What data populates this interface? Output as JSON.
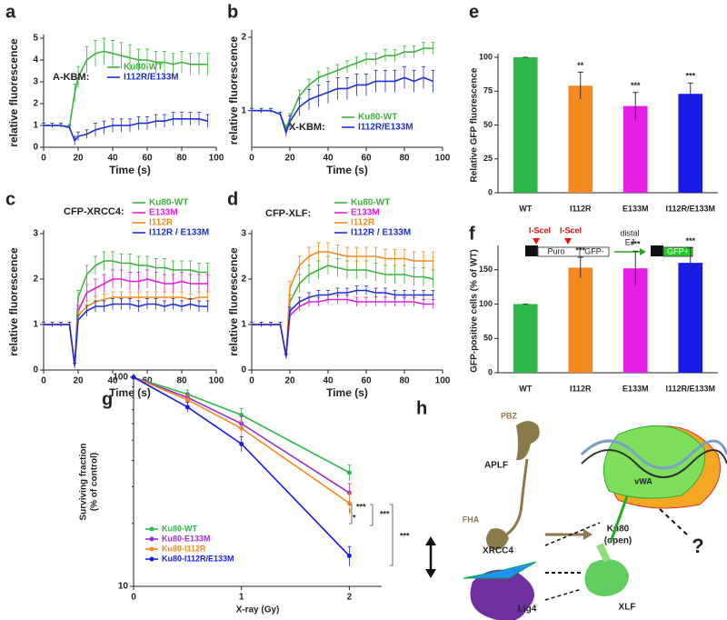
{
  "chart_data": [
    {
      "panel": "a",
      "type": "line",
      "xlabel": "Time (s)",
      "ylabel": "relative fluorescence",
      "annotation": "A-KBM:",
      "xlim": [
        0,
        100
      ],
      "xticks": [
        0,
        20,
        40,
        60,
        80,
        100
      ],
      "ylim": [
        0,
        5
      ],
      "yticks": [
        0,
        1,
        2,
        3,
        4,
        5
      ],
      "x": [
        0,
        5,
        10,
        15,
        18,
        20,
        25,
        30,
        35,
        40,
        45,
        50,
        55,
        60,
        65,
        70,
        75,
        80,
        85,
        90,
        95
      ],
      "series": [
        {
          "name": "Ku80-WT",
          "color": "#3cb43c",
          "values": [
            1,
            1,
            1,
            0.95,
            2.5,
            3.2,
            4.0,
            4.3,
            4.4,
            4.3,
            4.2,
            4.1,
            4.0,
            4.0,
            3.9,
            3.9,
            3.8,
            3.9,
            3.8,
            3.8,
            3.8
          ],
          "errors": [
            0.1,
            0.1,
            0.1,
            0.1,
            0.4,
            0.5,
            0.6,
            0.6,
            0.6,
            0.6,
            0.6,
            0.6,
            0.5,
            0.5,
            0.5,
            0.5,
            0.5,
            0.5,
            0.5,
            0.5,
            0.5
          ]
        },
        {
          "name": "I112R/E133M",
          "color": "#1f2fd0",
          "values": [
            1,
            1,
            1,
            0.9,
            0.3,
            0.5,
            0.6,
            0.8,
            0.9,
            1.0,
            1.0,
            1.0,
            1.1,
            1.1,
            1.2,
            1.2,
            1.3,
            1.3,
            1.3,
            1.3,
            1.2
          ],
          "errors": [
            0.1,
            0.1,
            0.1,
            0.1,
            0.2,
            0.2,
            0.2,
            0.3,
            0.3,
            0.3,
            0.3,
            0.3,
            0.3,
            0.3,
            0.3,
            0.3,
            0.3,
            0.3,
            0.3,
            0.3,
            0.3
          ]
        }
      ]
    },
    {
      "panel": "b",
      "type": "line",
      "xlabel": "Time (s)",
      "ylabel": "relative fluorescence",
      "annotation": "X-KBM:",
      "xlim": [
        0,
        100
      ],
      "xticks": [
        0,
        20,
        40,
        60,
        80,
        100
      ],
      "ylim": [
        0.5,
        2.05
      ],
      "yticks": [
        1,
        2
      ],
      "x": [
        0,
        5,
        10,
        15,
        18,
        20,
        25,
        30,
        35,
        40,
        45,
        50,
        55,
        60,
        65,
        70,
        75,
        80,
        85,
        90,
        95
      ],
      "series": [
        {
          "name": "Ku80-WT",
          "color": "#3cb43c",
          "values": [
            1,
            1,
            1,
            0.95,
            0.75,
            0.9,
            1.2,
            1.35,
            1.45,
            1.5,
            1.55,
            1.6,
            1.65,
            1.7,
            1.7,
            1.75,
            1.75,
            1.8,
            1.8,
            1.85,
            1.85
          ],
          "errors": [
            0.03,
            0.03,
            0.03,
            0.03,
            0.05,
            0.06,
            0.08,
            0.08,
            0.08,
            0.08,
            0.08,
            0.08,
            0.08,
            0.08,
            0.08,
            0.08,
            0.08,
            0.08,
            0.08,
            0.08,
            0.08
          ]
        },
        {
          "name": "I112R/E133M",
          "color": "#1f2fd0",
          "values": [
            1,
            1,
            1,
            0.95,
            0.7,
            0.85,
            1.05,
            1.15,
            1.2,
            1.25,
            1.3,
            1.3,
            1.35,
            1.35,
            1.4,
            1.4,
            1.4,
            1.45,
            1.4,
            1.45,
            1.4
          ],
          "errors": [
            0.03,
            0.03,
            0.03,
            0.03,
            0.05,
            0.08,
            0.12,
            0.14,
            0.15,
            0.15,
            0.15,
            0.15,
            0.15,
            0.15,
            0.15,
            0.15,
            0.15,
            0.15,
            0.15,
            0.15,
            0.15
          ]
        }
      ]
    },
    {
      "panel": "c",
      "type": "line",
      "xlabel": "Time (s)",
      "ylabel": "relative fluorescence",
      "annotation": "CFP-XRCC4:",
      "xlim": [
        0,
        100
      ],
      "xticks": [
        0,
        20,
        40,
        60,
        80,
        100
      ],
      "ylim": [
        0,
        3
      ],
      "yticks": [
        0,
        1,
        2,
        3
      ],
      "x": [
        0,
        5,
        10,
        15,
        18,
        20,
        25,
        30,
        35,
        40,
        45,
        50,
        55,
        60,
        65,
        70,
        75,
        80,
        85,
        90,
        95
      ],
      "series": [
        {
          "name": "Ku80-WT",
          "color": "#3cb43c",
          "values": [
            1,
            1,
            1,
            1,
            0.1,
            1.6,
            2.1,
            2.3,
            2.4,
            2.4,
            2.35,
            2.35,
            2.3,
            2.3,
            2.25,
            2.25,
            2.2,
            2.2,
            2.2,
            2.15,
            2.15
          ],
          "errors": [
            0.05,
            0.05,
            0.05,
            0.05,
            0.05,
            0.15,
            0.2,
            0.2,
            0.2,
            0.2,
            0.2,
            0.2,
            0.2,
            0.2,
            0.2,
            0.2,
            0.2,
            0.2,
            0.2,
            0.2,
            0.2
          ]
        },
        {
          "name": "E133M",
          "color": "#e020e0",
          "values": [
            1,
            1,
            1,
            1,
            0.1,
            1.3,
            1.7,
            1.8,
            1.9,
            2.0,
            2.0,
            1.95,
            1.95,
            2.0,
            1.95,
            1.9,
            1.9,
            1.95,
            1.9,
            1.9,
            1.9
          ],
          "errors": [
            0.05,
            0.05,
            0.05,
            0.05,
            0.05,
            0.12,
            0.18,
            0.2,
            0.2,
            0.2,
            0.2,
            0.2,
            0.2,
            0.2,
            0.2,
            0.2,
            0.2,
            0.2,
            0.2,
            0.2,
            0.2
          ]
        },
        {
          "name": "I112R",
          "color": "#f08c1e",
          "values": [
            1,
            1,
            1,
            1,
            0.1,
            1.2,
            1.4,
            1.5,
            1.55,
            1.6,
            1.6,
            1.6,
            1.6,
            1.6,
            1.6,
            1.6,
            1.6,
            1.6,
            1.55,
            1.6,
            1.6
          ],
          "errors": [
            0.05,
            0.05,
            0.05,
            0.05,
            0.05,
            0.1,
            0.12,
            0.12,
            0.12,
            0.12,
            0.12,
            0.12,
            0.12,
            0.12,
            0.12,
            0.12,
            0.12,
            0.12,
            0.12,
            0.12,
            0.12
          ]
        },
        {
          "name": "I112R / E133M",
          "color": "#1f2fd0",
          "values": [
            1,
            1,
            1,
            1,
            0.1,
            1.1,
            1.3,
            1.4,
            1.4,
            1.45,
            1.45,
            1.45,
            1.4,
            1.45,
            1.45,
            1.4,
            1.45,
            1.4,
            1.45,
            1.4,
            1.4
          ],
          "errors": [
            0.05,
            0.05,
            0.05,
            0.05,
            0.05,
            0.1,
            0.12,
            0.12,
            0.12,
            0.12,
            0.12,
            0.12,
            0.12,
            0.12,
            0.12,
            0.12,
            0.12,
            0.12,
            0.12,
            0.12,
            0.12
          ]
        }
      ]
    },
    {
      "panel": "d",
      "type": "line",
      "xlabel": "Time (s)",
      "ylabel": "relative fluorescence",
      "annotation": "CFP-XLF:",
      "xlim": [
        0,
        100
      ],
      "xticks": [
        0,
        20,
        40,
        60,
        80,
        100
      ],
      "ylim": [
        0,
        3
      ],
      "yticks": [
        0,
        1,
        2,
        3
      ],
      "x": [
        0,
        5,
        10,
        15,
        18,
        20,
        25,
        30,
        35,
        40,
        45,
        50,
        55,
        60,
        65,
        70,
        75,
        80,
        85,
        90,
        95
      ],
      "series": [
        {
          "name": "Ku80-WT",
          "color": "#3cb43c",
          "values": [
            1,
            1,
            1,
            1,
            0.3,
            1.5,
            1.9,
            2.1,
            2.2,
            2.3,
            2.25,
            2.2,
            2.2,
            2.2,
            2.15,
            2.1,
            2.1,
            2.1,
            2.05,
            2.05,
            2.0
          ],
          "errors": [
            0.05,
            0.05,
            0.05,
            0.05,
            0.05,
            0.15,
            0.2,
            0.2,
            0.2,
            0.2,
            0.2,
            0.2,
            0.2,
            0.2,
            0.2,
            0.2,
            0.2,
            0.2,
            0.2,
            0.2,
            0.2
          ]
        },
        {
          "name": "E133M",
          "color": "#e020e0",
          "values": [
            1,
            1,
            1,
            1,
            0.3,
            1.2,
            1.4,
            1.5,
            1.5,
            1.55,
            1.55,
            1.55,
            1.5,
            1.5,
            1.5,
            1.5,
            1.5,
            1.5,
            1.5,
            1.45,
            1.45
          ],
          "errors": [
            0.05,
            0.05,
            0.05,
            0.05,
            0.05,
            0.08,
            0.1,
            0.1,
            0.1,
            0.1,
            0.1,
            0.1,
            0.1,
            0.1,
            0.1,
            0.1,
            0.1,
            0.1,
            0.1,
            0.1,
            0.1
          ]
        },
        {
          "name": "I112R",
          "color": "#f08c1e",
          "values": [
            1,
            1,
            1,
            1,
            0.3,
            1.8,
            2.3,
            2.5,
            2.6,
            2.6,
            2.55,
            2.5,
            2.5,
            2.5,
            2.5,
            2.45,
            2.45,
            2.45,
            2.4,
            2.4,
            2.4
          ],
          "errors": [
            0.05,
            0.05,
            0.05,
            0.05,
            0.05,
            0.15,
            0.2,
            0.2,
            0.2,
            0.2,
            0.2,
            0.2,
            0.2,
            0.2,
            0.2,
            0.2,
            0.2,
            0.2,
            0.2,
            0.2,
            0.2
          ]
        },
        {
          "name": "I112R / E133M",
          "color": "#1f2fd0",
          "values": [
            1,
            1,
            1,
            1,
            0.3,
            1.3,
            1.5,
            1.6,
            1.65,
            1.65,
            1.7,
            1.7,
            1.75,
            1.75,
            1.7,
            1.7,
            1.65,
            1.65,
            1.65,
            1.65,
            1.65
          ],
          "errors": [
            0.05,
            0.05,
            0.05,
            0.05,
            0.05,
            0.08,
            0.1,
            0.1,
            0.1,
            0.1,
            0.1,
            0.1,
            0.1,
            0.1,
            0.1,
            0.1,
            0.1,
            0.1,
            0.1,
            0.1,
            0.1
          ]
        }
      ]
    },
    {
      "panel": "e",
      "type": "bar",
      "ylabel": "Relative GFP fluorescence",
      "categories": [
        "WT",
        "I112R",
        "E133M",
        "I112R/E133M"
      ],
      "values": [
        100,
        79,
        64,
        73
      ],
      "errors": [
        0,
        10,
        10,
        8
      ],
      "colors": [
        "#2db84a",
        "#f5891f",
        "#e61fe6",
        "#1a1ae6"
      ],
      "significance": [
        null,
        "**",
        "***",
        "***"
      ],
      "ylim": [
        0,
        100
      ],
      "yticks": [
        0,
        25,
        50,
        75,
        100
      ]
    },
    {
      "panel": "f",
      "type": "bar",
      "ylabel": "GFP-positive cells (% of WT)",
      "categories": [
        "WT",
        "I112R",
        "E133M",
        "I112R/E133M"
      ],
      "values": [
        100,
        153,
        152,
        160
      ],
      "errors": [
        0,
        15,
        25,
        22
      ],
      "colors": [
        "#2db84a",
        "#f5891f",
        "#e61fe6",
        "#1a1ae6"
      ],
      "significance": [
        null,
        "***",
        "***",
        "***"
      ],
      "ylim": [
        0,
        180
      ],
      "yticks": [
        0,
        50,
        100,
        150
      ],
      "schematic": {
        "site1": "I-SceI",
        "site2": "I-SceI",
        "box1": "Puro",
        "box2": "GFP-",
        "arrow_top": "distal",
        "arrow_bottom": "EJ",
        "product": "GFP+"
      }
    },
    {
      "panel": "g",
      "type": "line",
      "yscale": "log",
      "xlabel": "X-ray (Gy)",
      "ylabel": [
        "Surviving fraction",
        "(% of control)"
      ],
      "xlim": [
        0,
        2.3
      ],
      "xticks": [
        0,
        1,
        2
      ],
      "ylim": [
        10,
        100
      ],
      "yticks": [
        10,
        100
      ],
      "x": [
        0,
        0.5,
        1,
        2
      ],
      "series": [
        {
          "name": "Ku80-WT",
          "color": "#2db84a",
          "values": [
            100,
            83,
            66,
            35
          ],
          "errors": [
            0,
            4,
            5,
            3
          ]
        },
        {
          "name": "Ku80-E133M",
          "color": "#9b30d0",
          "values": [
            100,
            80,
            60,
            28
          ],
          "errors": [
            0,
            4,
            5,
            3
          ]
        },
        {
          "name": "Ku80-I112R",
          "color": "#f5891f",
          "values": [
            100,
            78,
            57,
            25
          ],
          "errors": [
            0,
            4,
            5,
            3
          ]
        },
        {
          "name": "Ku80-I112R/E133M",
          "color": "#1a1ae6",
          "values": [
            100,
            72,
            48,
            14
          ],
          "errors": [
            0,
            4,
            4,
            1.5
          ]
        }
      ],
      "annotations": [
        "***",
        "*",
        "***",
        "***"
      ]
    }
  ],
  "diagram_h": {
    "panel": "h",
    "labels": {
      "pbz": "PBZ",
      "aplf": "APLF",
      "fha": "FHA",
      "vwa": "vWA",
      "ku80": "Ku80",
      "open": "(open)",
      "xrcc4": "XRCC4",
      "lig4": "Lig4",
      "xlf": "XLF",
      "unknown": "?"
    }
  }
}
